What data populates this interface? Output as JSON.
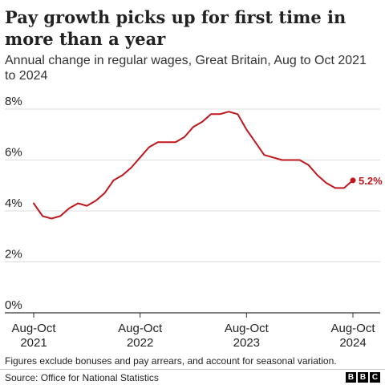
{
  "chart_data": {
    "type": "line",
    "title": "Pay growth picks up for first time in more than a year",
    "subtitle": "Annual change in regular wages, Great Britain, Aug to Oct 2021 to 2024",
    "ylim": [
      0,
      8
    ],
    "yticks": [
      0,
      2,
      4,
      6,
      8
    ],
    "ytick_labels": [
      "0%",
      "2%",
      "4%",
      "6%",
      "8%"
    ],
    "xtick_labels": [
      {
        "line1": "Aug-Oct",
        "line2": "2021"
      },
      {
        "line1": "Aug-Oct",
        "line2": "2022"
      },
      {
        "line1": "Aug-Oct",
        "line2": "2023"
      },
      {
        "line1": "Aug-Oct",
        "line2": "2024"
      }
    ],
    "grid": true,
    "series": [
      {
        "color": "#c0161d",
        "end_label": "5.2%",
        "values": [
          4.3,
          3.8,
          3.7,
          3.8,
          4.1,
          4.3,
          4.2,
          4.4,
          4.7,
          5.2,
          5.4,
          5.7,
          6.1,
          6.5,
          6.7,
          6.7,
          6.7,
          6.9,
          7.3,
          7.5,
          7.8,
          7.8,
          7.9,
          7.8,
          7.2,
          6.7,
          6.2,
          6.1,
          6.0,
          6.0,
          6.0,
          5.8,
          5.4,
          5.1,
          4.9,
          4.9,
          5.2
        ]
      }
    ]
  },
  "footnote": "Figures exclude bonuses and pay arrears, and account for seasonal variation.",
  "source": "Source: Office for National Statistics",
  "logo": [
    "B",
    "B",
    "C"
  ]
}
